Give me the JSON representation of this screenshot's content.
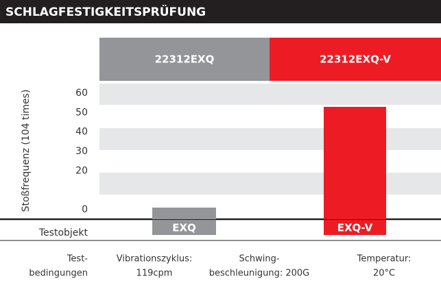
{
  "chart_data": {
    "type": "bar",
    "title": "SCHLAGFESTIGKEITSPRÜFUNG",
    "column_headers": [
      "22312EXQ",
      "22312EXQ-V"
    ],
    "y_label": "Stoßfrequenz (104 times)",
    "x_label": "Testobjekt",
    "categories": [
      "EXQ",
      "EXQ-V"
    ],
    "values": [
      1,
      53
    ],
    "colors": [
      "#939598",
      "#ed1c24"
    ],
    "ylim": [
      -5,
      65
    ],
    "yticks": [
      0,
      20,
      30,
      40,
      50,
      60
    ],
    "conditions": {
      "label": [
        "Test-",
        "bedingungen"
      ],
      "items": [
        [
          "Vibrationszyklus:",
          "119cpm"
        ],
        [
          "Schwing-",
          "beschleunigung: 200G"
        ],
        [
          "Temperatur:",
          "20°C"
        ]
      ]
    }
  }
}
